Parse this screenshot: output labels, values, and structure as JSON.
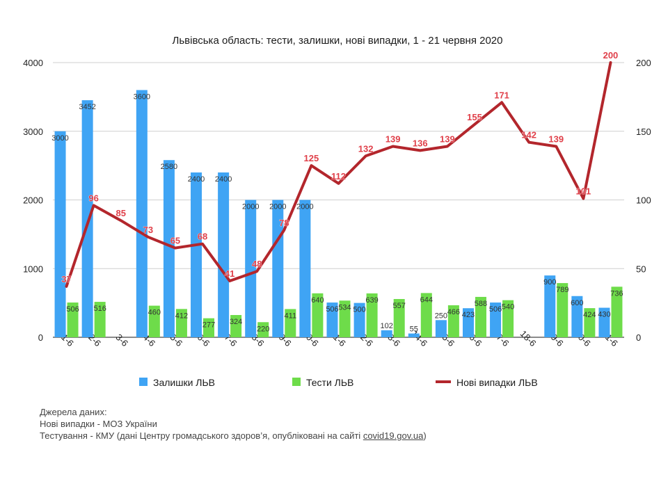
{
  "chart_data": {
    "type": "bar",
    "title": "Львівська область: тести, залишки, нові випадки, 1 - 21 червня 2020",
    "categories": [
      "1-6",
      "2-6",
      "3-6",
      "4-6",
      "5-6",
      "6-6",
      "7-6",
      "8-6",
      "9-6",
      "10-6",
      "11-6",
      "12-6",
      "13-6",
      "14-6",
      "15-6",
      "16-6",
      "17-6",
      "18-6",
      "19-6",
      "20-6",
      "21-6"
    ],
    "series": [
      {
        "name": "Залишки ЛЬВ",
        "type": "bar",
        "axis": "left",
        "color": "#3fa4f4",
        "values": [
          3000,
          3452,
          null,
          3600,
          2580,
          2400,
          2400,
          2000,
          2000,
          2000,
          506,
          500,
          102,
          55,
          250,
          423,
          506,
          null,
          900,
          600,
          430
        ]
      },
      {
        "name": "Тести ЛЬВ",
        "type": "bar",
        "axis": "left",
        "color": "#6edc4a",
        "values": [
          506,
          516,
          null,
          460,
          412,
          277,
          324,
          220,
          411,
          640,
          534,
          639,
          557,
          644,
          466,
          588,
          540,
          null,
          789,
          424,
          736
        ]
      },
      {
        "name": "Нові випадки ЛЬВ",
        "type": "line",
        "axis": "right",
        "color": "#b3262c",
        "values": [
          37,
          96,
          85,
          73,
          65,
          68,
          41,
          48,
          78,
          125,
          112,
          132,
          139,
          136,
          139,
          155,
          171,
          142,
          139,
          101,
          200
        ]
      }
    ],
    "y_left": {
      "ylim": [
        0,
        4000
      ],
      "ticks": [
        "0",
        "1000",
        "2000",
        "3000",
        "4000"
      ]
    },
    "y_right": {
      "ylim": [
        0,
        200
      ],
      "ticks": [
        "0",
        "50",
        "100",
        "150",
        "200"
      ]
    },
    "grid": true,
    "legend_position": "bottom"
  },
  "sources": {
    "heading": "Джерела даних:",
    "line1": "Нові випадки - МОЗ України",
    "line2_prefix": "Тестування - КМУ (дані Центру громадського здоров’я, опубліковані на сайті ",
    "line2_link": "covid19.gov.ua",
    "line2_suffix": ")"
  }
}
